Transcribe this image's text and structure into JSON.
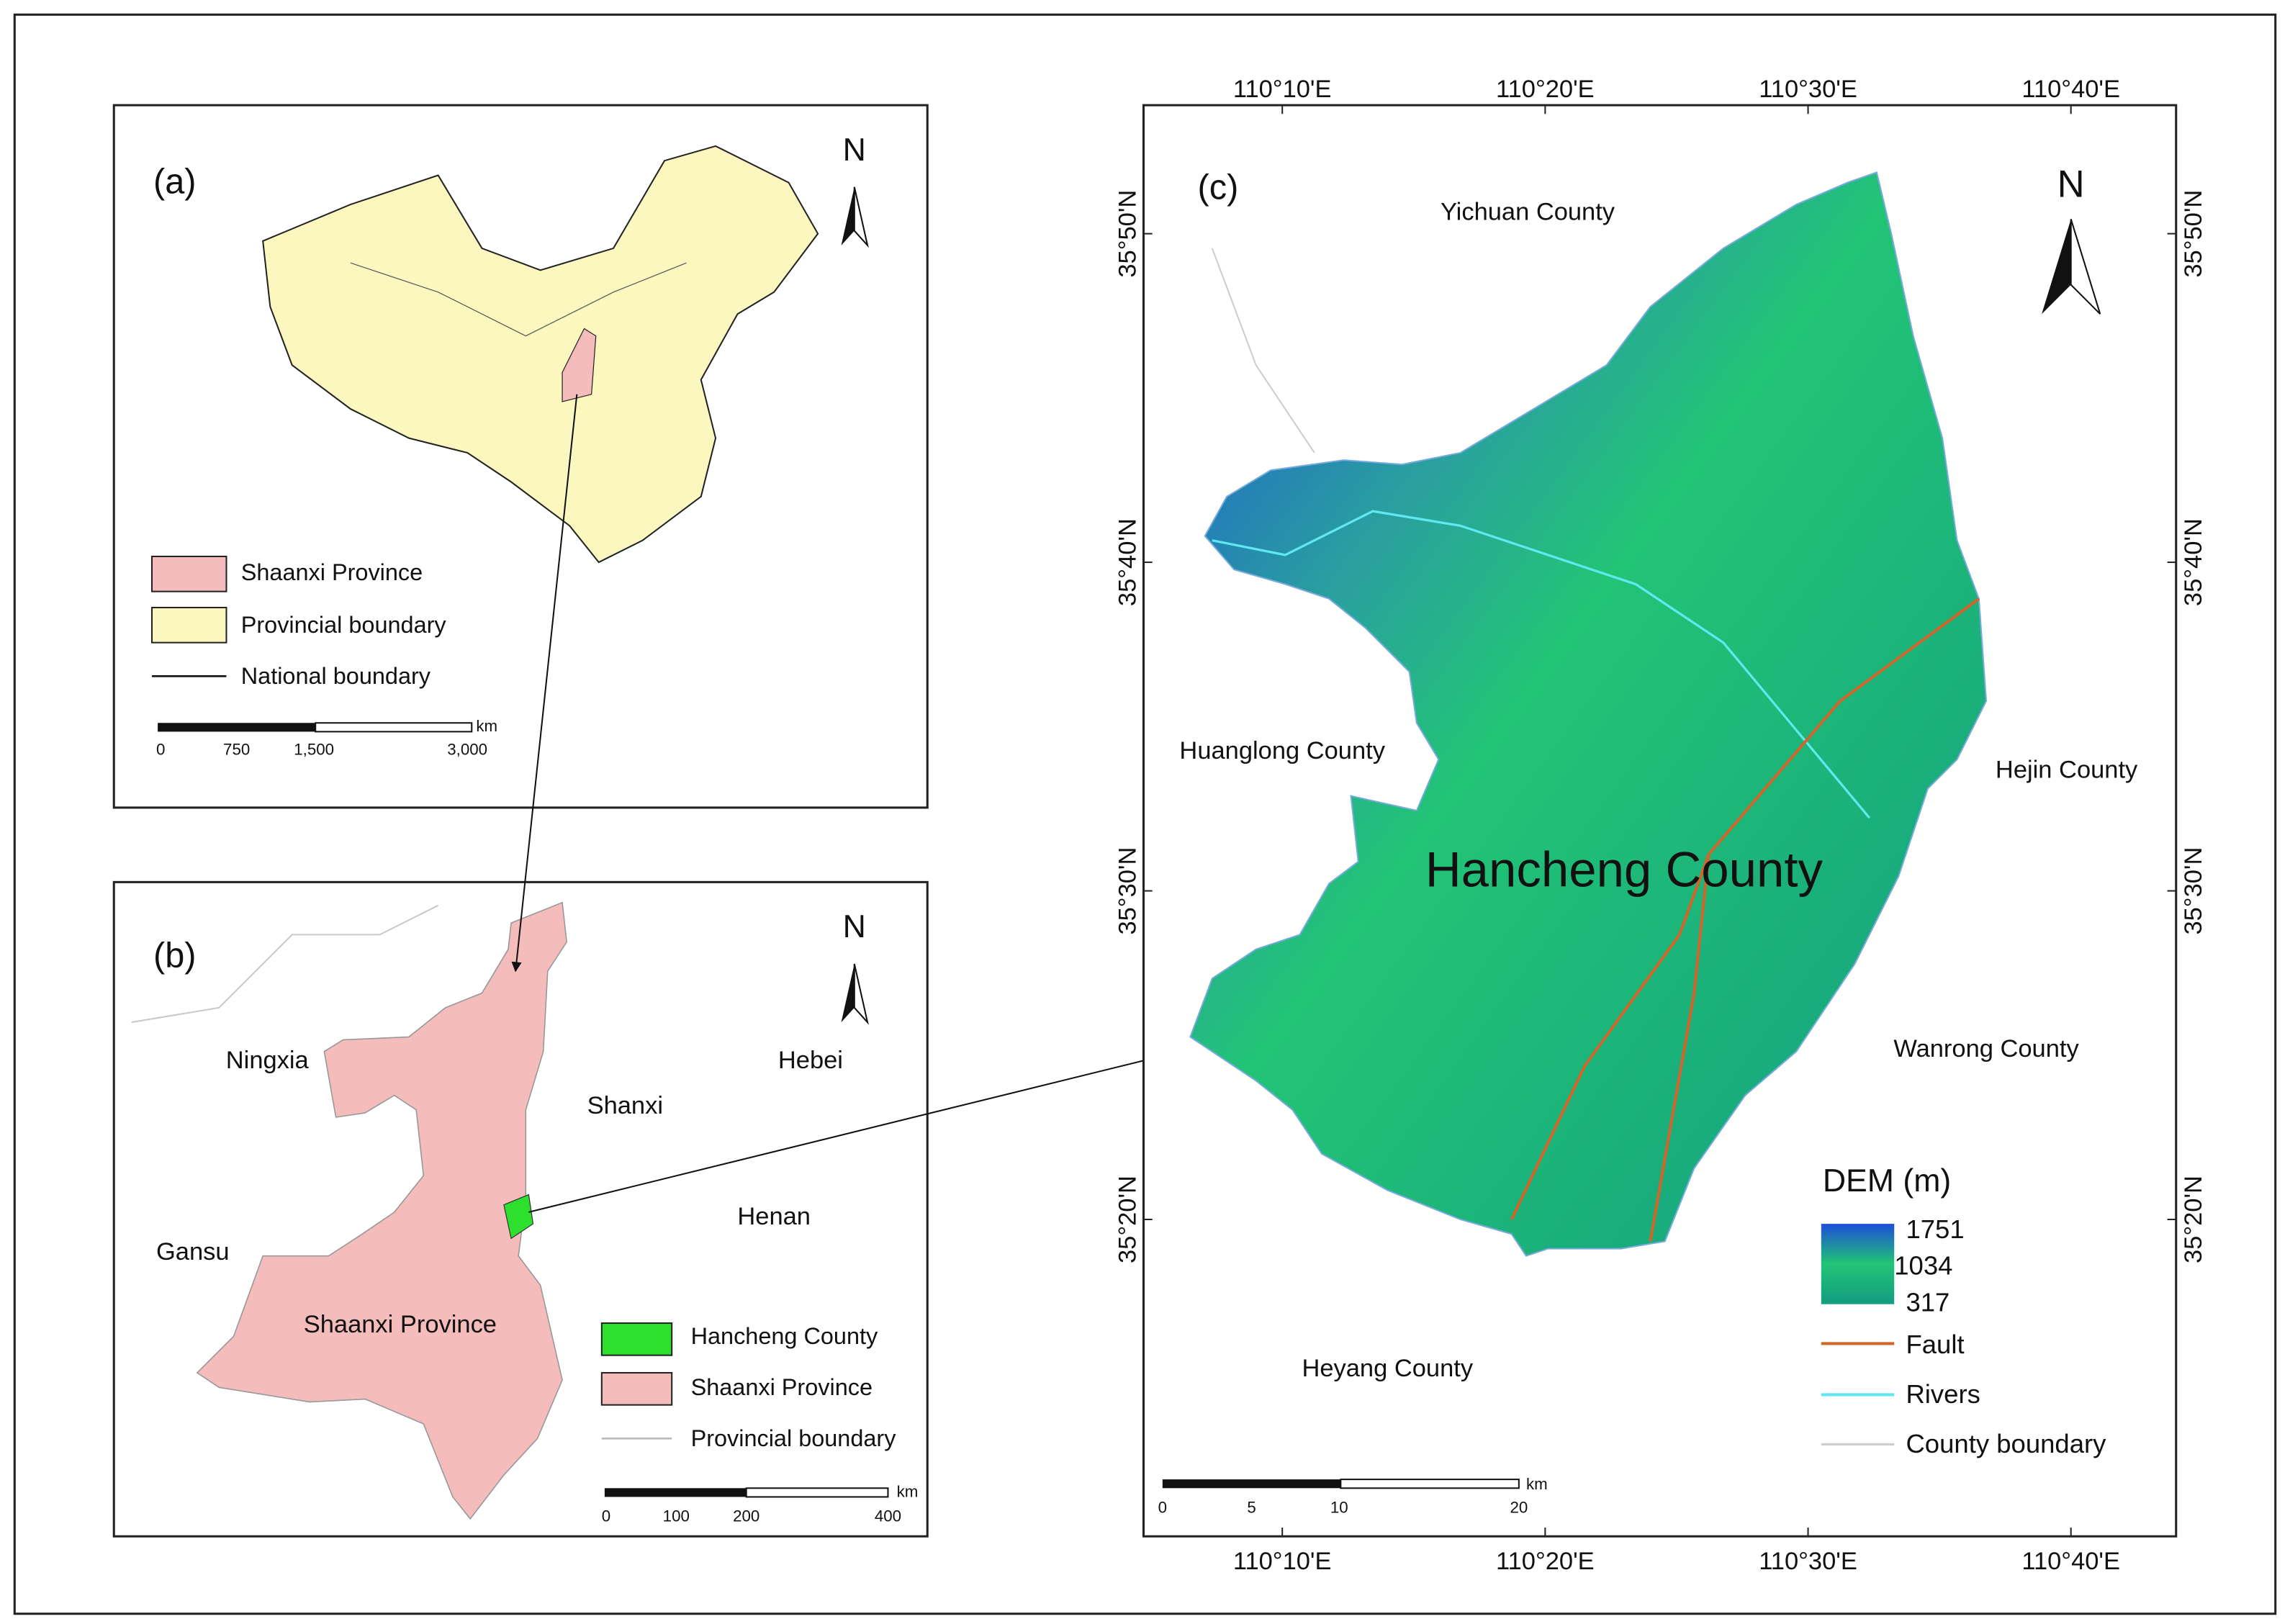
{
  "panel_a": {
    "label": "(a)",
    "north": "N",
    "legend": [
      "Shaanxi Province",
      "Provincial boundary",
      "National boundary"
    ],
    "scale": {
      "ticks": [
        "0",
        "750",
        "1,500",
        "3,000"
      ],
      "unit": "km"
    }
  },
  "panel_b": {
    "label": "(b)",
    "north": "N",
    "places": [
      "Ningxia",
      "Shanxi",
      "Hebei",
      "Gansu",
      "Henan",
      "Shaanxi Province"
    ],
    "legend": [
      "Hancheng County",
      "Shaanxi Province",
      "Provincial boundary"
    ],
    "scale": {
      "ticks": [
        "0",
        "100",
        "200",
        "400"
      ],
      "unit": "km"
    }
  },
  "panel_c": {
    "label": "(c)",
    "north": "N",
    "title": "Hancheng County",
    "counties": [
      "Yichuan County",
      "Huanglong County",
      "Hejin County",
      "Wanrong County",
      "Heyang County"
    ],
    "lon_labels": [
      "110°10'E",
      "110°20'E",
      "110°30'E",
      "110°40'E"
    ],
    "lat_labels": [
      "35°50'N",
      "35°40'N",
      "35°30'N",
      "35°20'N"
    ],
    "legend": {
      "title": "DEM (m)",
      "dem_labels": [
        "1751",
        "1034",
        "317"
      ],
      "items": [
        "Fault",
        "Rivers",
        "County boundary"
      ]
    },
    "scale": {
      "ticks": [
        "0",
        "5",
        "10",
        "20"
      ],
      "unit": "km"
    }
  }
}
